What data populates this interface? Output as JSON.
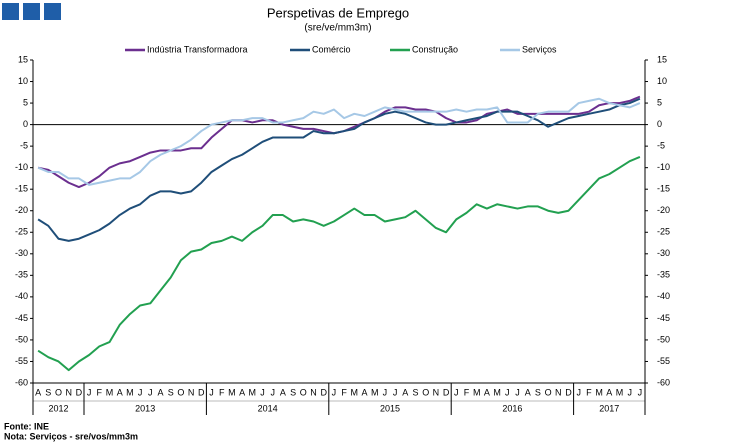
{
  "chart_data": {
    "type": "line",
    "title": "Perspetivas de Emprego",
    "subtitle": "(sre/ve/mm3m)",
    "source": "Fonte: INE",
    "note": "Nota: Serviços - sre/vos/mm3m",
    "categories": [
      "A",
      "S",
      "O",
      "N",
      "D",
      "J",
      "F",
      "M",
      "A",
      "M",
      "J",
      "J",
      "A",
      "S",
      "O",
      "N",
      "D",
      "J",
      "F",
      "M",
      "A",
      "M",
      "J",
      "J",
      "A",
      "S",
      "O",
      "N",
      "D",
      "J",
      "F",
      "M",
      "A",
      "M",
      "J",
      "J",
      "A",
      "S",
      "O",
      "N",
      "D",
      "J",
      "F",
      "M",
      "A",
      "M",
      "J",
      "J",
      "A",
      "S",
      "O",
      "N",
      "D",
      "J",
      "F",
      "M",
      "A",
      "M",
      "J",
      "J"
    ],
    "years": [
      {
        "label": "2012",
        "months": 5
      },
      {
        "label": "2013",
        "months": 12
      },
      {
        "label": "2014",
        "months": 12
      },
      {
        "label": "2015",
        "months": 12
      },
      {
        "label": "2016",
        "months": 12
      },
      {
        "label": "2017",
        "months": 7
      }
    ],
    "ylim": [
      -60,
      15
    ],
    "yticks": [
      -60,
      -55,
      -50,
      -45,
      -40,
      -35,
      -30,
      -25,
      -20,
      -15,
      -10,
      -5,
      0,
      5,
      10,
      15
    ],
    "y2lim": [
      -60,
      15
    ],
    "y2ticks": [
      -60,
      -55,
      -50,
      -45,
      -40,
      -35,
      -30,
      -25,
      -20,
      -15,
      -10,
      -5,
      0,
      5,
      10,
      15
    ],
    "legend": "top",
    "series": [
      {
        "name": "Indústria Transformadora",
        "color": "#6b2f8f",
        "values": [
          -10,
          -10.5,
          -12,
          -13.5,
          -14.5,
          -13.5,
          -12,
          -10,
          -9,
          -8.5,
          -7.5,
          -6.5,
          -6,
          -6,
          -6,
          -5.5,
          -5.5,
          -3,
          -1,
          1,
          1,
          0.5,
          1,
          1,
          0,
          -0.5,
          -1,
          -1,
          -1.5,
          -2,
          -1.5,
          -0.5,
          0.5,
          1.5,
          3,
          4,
          4,
          3.5,
          3.5,
          3,
          1.5,
          0.5,
          0.5,
          1,
          2.5,
          3,
          3.5,
          2.5,
          2.5,
          2.5,
          2.5,
          2.5,
          2.5,
          2.5,
          3,
          4.5,
          5,
          5,
          5.5,
          6.5
        ]
      },
      {
        "name": "Comércio",
        "color": "#1f4e79",
        "values": [
          -22,
          -23.5,
          -26.5,
          -27,
          -26.5,
          -25.5,
          -24.5,
          -23,
          -21,
          -19.5,
          -18.5,
          -16.5,
          -15.5,
          -15.5,
          -16,
          -15.5,
          -13.5,
          -11,
          -9.5,
          -8,
          -7,
          -5.5,
          -4,
          -3,
          -3,
          -3,
          -3,
          -1.5,
          -2,
          -2,
          -1.5,
          -1,
          0.5,
          1.5,
          2.5,
          3,
          2.5,
          1.5,
          0.5,
          0,
          0,
          0.5,
          1,
          1.5,
          2,
          3,
          3,
          3,
          2,
          1,
          -0.5,
          0.5,
          1.5,
          2,
          2.5,
          3,
          3.5,
          4.5,
          5,
          6
        ]
      },
      {
        "name": "Construção",
        "color": "#22a050",
        "values": [
          -52.5,
          -54,
          -55,
          -57,
          -55,
          -53.5,
          -51.5,
          -50.5,
          -46.5,
          -44,
          -42,
          -41.5,
          -38.5,
          -35.5,
          -31.5,
          -29.5,
          -29,
          -27.5,
          -27,
          -26,
          -27,
          -25,
          -23.5,
          -21,
          -21,
          -22.5,
          -22,
          -22.5,
          -23.5,
          -22.5,
          -21,
          -19.5,
          -21,
          -21,
          -22.5,
          -22,
          -21.5,
          -20,
          -22,
          -24,
          -25,
          -22,
          -20.5,
          -18.5,
          -19.5,
          -18.5,
          -19,
          -19.5,
          -19,
          -19,
          -20,
          -20.5,
          -20,
          -17.5,
          -15,
          -12.5,
          -11.5,
          -10,
          -8.5,
          -7.5
        ]
      },
      {
        "name": "Serviços",
        "color": "#a6c8e6",
        "values": [
          -10,
          -11,
          -11,
          -12.5,
          -12.5,
          -14,
          -13.5,
          -13,
          -12.5,
          -12.5,
          -11,
          -8.5,
          -7,
          -6,
          -5,
          -3.5,
          -1.5,
          0,
          0.5,
          1,
          1,
          1.5,
          1.5,
          0.5,
          0.5,
          1,
          1.5,
          3,
          2.5,
          3.5,
          1.5,
          2.5,
          2,
          3,
          4,
          3.5,
          3,
          3,
          3,
          3,
          3,
          3.5,
          3,
          3.5,
          3.5,
          4,
          0.5,
          0.5,
          0.5,
          2.5,
          3,
          3,
          3,
          5,
          5.5,
          6,
          5,
          4.5,
          4,
          5
        ]
      }
    ]
  }
}
